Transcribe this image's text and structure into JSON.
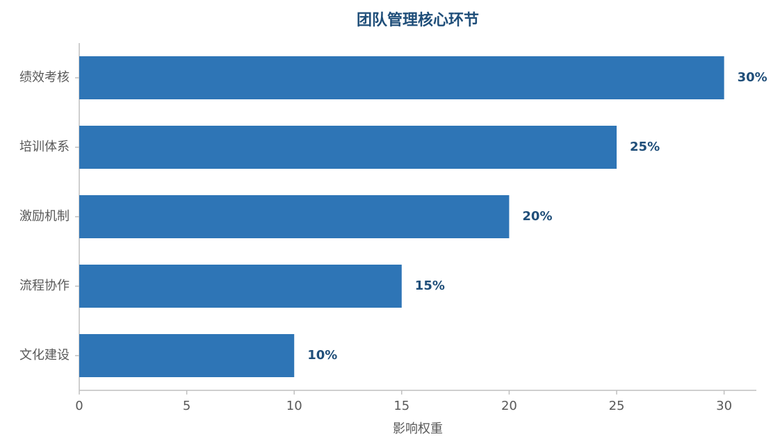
{
  "chart_data": {
    "type": "barh",
    "title": "团队管理核心环节",
    "xlabel": "影响权重",
    "categories": [
      "绩效考核",
      "培训体系",
      "激励机制",
      "流程协作",
      "文化建设"
    ],
    "values": [
      30,
      25,
      20,
      15,
      10
    ],
    "value_labels": [
      "30%",
      "25%",
      "20%",
      "15%",
      "10%"
    ],
    "color": "#2e75b6",
    "xlim": [
      0,
      31.5
    ],
    "xticks": [
      0,
      5,
      10,
      15,
      20,
      25,
      30
    ],
    "grid": false
  }
}
